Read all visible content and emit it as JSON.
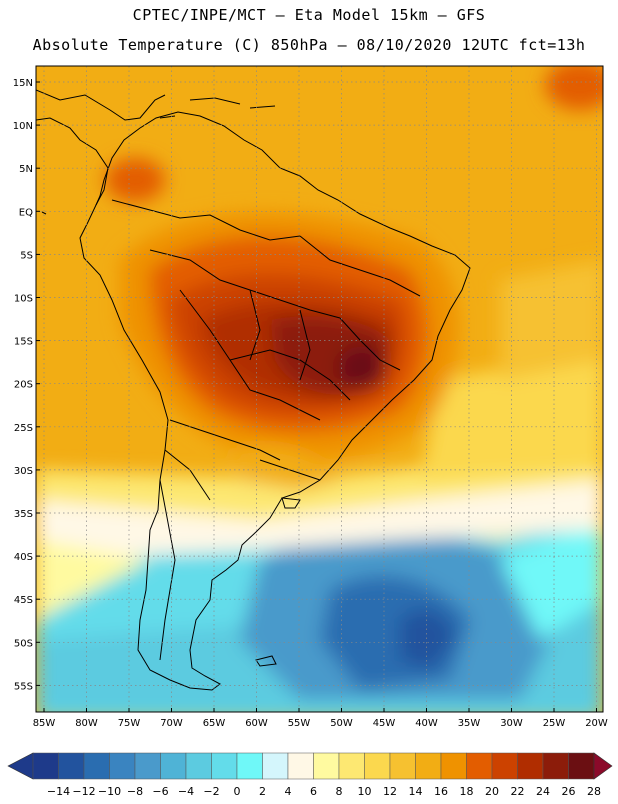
{
  "header": {
    "line1": "CPTEC/INPE/MCT –  Eta Model 15km – GFS",
    "line2": "Absolute Temperature (C) 850hPa – 08/10/2020 12UTC fct=13h"
  },
  "map": {
    "lat_labels": [
      "15N",
      "10N",
      "5N",
      "EQ",
      "5S",
      "10S",
      "15S",
      "20S",
      "25S",
      "30S",
      "35S",
      "40S",
      "45S",
      "50S",
      "55S"
    ],
    "lon_labels": [
      "85W",
      "80W",
      "75W",
      "70W",
      "65W",
      "60W",
      "55W",
      "50W",
      "45W",
      "40W",
      "35W",
      "30W",
      "25W",
      "20W"
    ]
  },
  "colorbar": {
    "labels": [
      "-14",
      "-12",
      "-10",
      "-8",
      "-6",
      "-4",
      "-2",
      "0",
      "2",
      "4",
      "6",
      "8",
      "10",
      "12",
      "14",
      "16",
      "18",
      "20",
      "22",
      "24",
      "26",
      "28"
    ],
    "colors": [
      "#1e3a8a",
      "#22539e",
      "#2a6db0",
      "#3a84c0",
      "#4a9acb",
      "#4fb3d6",
      "#5ccbe0",
      "#63dcea",
      "#6ff8f8",
      "#d4f6fc",
      "#fff8e6",
      "#fffaa0",
      "#fde872",
      "#fbd84e",
      "#f6c130",
      "#f2ad14",
      "#ef9200",
      "#e35d00",
      "#cc4200",
      "#b02d00",
      "#8c1c0a",
      "#6b0f12",
      "#8b0a2a"
    ]
  }
}
